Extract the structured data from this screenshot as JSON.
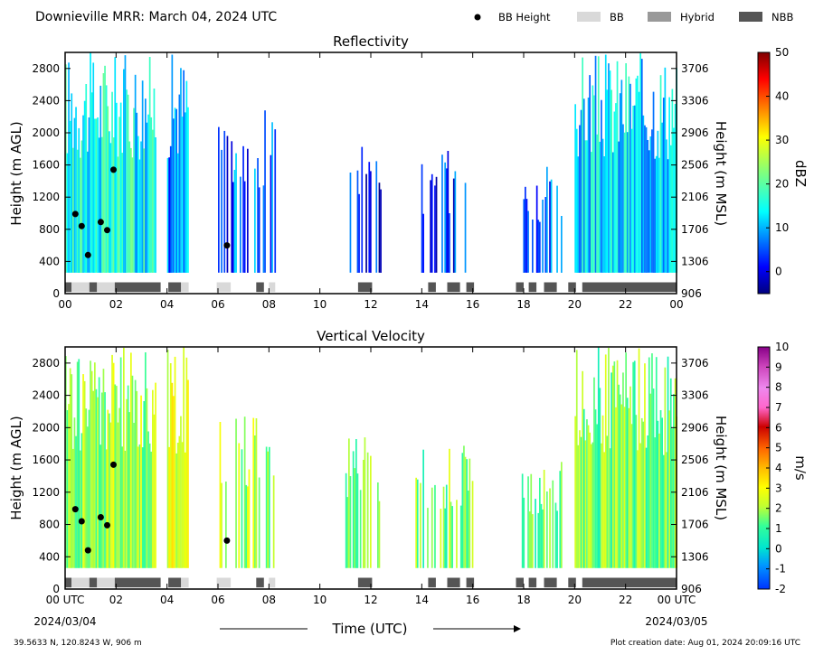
{
  "header": {
    "title": "Downieville MRR:  March 04, 2024 UTC",
    "legend": [
      {
        "label": "BB Height",
        "kind": "dot",
        "color": "#000000"
      },
      {
        "label": "BB",
        "kind": "box",
        "color": "#d9d9d9"
      },
      {
        "label": "Hybrid",
        "kind": "box",
        "color": "#999999"
      },
      {
        "label": "NBB",
        "kind": "box",
        "color": "#555555"
      }
    ]
  },
  "footer": {
    "location": "39.5633 N, 120.8243 W, 906 m",
    "created": "Plot creation date: Aug 01, 2024 20:09:16 UTC",
    "xlabel": "Time (UTC)",
    "start_date": "2024/03/04",
    "end_date": "2024/03/05"
  },
  "chart_data": [
    {
      "type": "heatmap",
      "title": "Reflectivity",
      "xlabel": "",
      "ylabel": "Height (m AGL)",
      "y2label": "Height (m MSL)",
      "xlim": [
        0,
        24
      ],
      "ylim": [
        0,
        3000
      ],
      "y2lim": [
        906,
        3906
      ],
      "xticks": [
        "00",
        "02",
        "04",
        "06",
        "08",
        "10",
        "12",
        "14",
        "16",
        "18",
        "20",
        "22",
        "00"
      ],
      "yticks": [
        "0",
        "400",
        "800",
        "1200",
        "1600",
        "2000",
        "2400",
        "2800"
      ],
      "y2ticks": [
        "906",
        "1306",
        "1706",
        "2106",
        "2506",
        "2906",
        "3306",
        "3706"
      ],
      "colorbar": {
        "label": "dBZ",
        "range": [
          -5,
          50
        ],
        "ticks": [
          "0",
          "10",
          "20",
          "30",
          "40",
          "50"
        ],
        "colormap": "jet"
      },
      "bb_height": {
        "name": "BB Height",
        "x": [
          0.4,
          0.65,
          0.9,
          1.4,
          1.65,
          1.9,
          6.35
        ],
        "y": [
          990,
          840,
          480,
          890,
          790,
          1540,
          600
        ]
      },
      "bb_classification": [
        {
          "start": 0.0,
          "end": 0.25,
          "class": "NBB"
        },
        {
          "start": 0.25,
          "end": 0.95,
          "class": "BB"
        },
        {
          "start": 0.95,
          "end": 1.25,
          "class": "NBB"
        },
        {
          "start": 1.25,
          "end": 1.95,
          "class": "BB"
        },
        {
          "start": 1.95,
          "end": 3.75,
          "class": "NBB"
        },
        {
          "start": 4.05,
          "end": 4.55,
          "class": "NBB"
        },
        {
          "start": 4.55,
          "end": 4.85,
          "class": "BB"
        },
        {
          "start": 5.95,
          "end": 6.5,
          "class": "BB"
        },
        {
          "start": 7.5,
          "end": 7.8,
          "class": "NBB"
        },
        {
          "start": 8.0,
          "end": 8.25,
          "class": "BB"
        },
        {
          "start": 11.5,
          "end": 12.05,
          "class": "NBB"
        },
        {
          "start": 14.25,
          "end": 14.55,
          "class": "NBB"
        },
        {
          "start": 15.0,
          "end": 15.5,
          "class": "NBB"
        },
        {
          "start": 15.75,
          "end": 16.05,
          "class": "NBB"
        },
        {
          "start": 17.7,
          "end": 18.0,
          "class": "NBB"
        },
        {
          "start": 18.2,
          "end": 18.5,
          "class": "NBB"
        },
        {
          "start": 18.8,
          "end": 19.3,
          "class": "NBB"
        },
        {
          "start": 19.75,
          "end": 20.05,
          "class": "NBB"
        },
        {
          "start": 20.3,
          "end": 24.0,
          "class": "NBB"
        }
      ],
      "echo_periods": [
        {
          "start": 0.0,
          "end": 3.55,
          "top": 3000,
          "value": 15
        },
        {
          "start": 4.0,
          "end": 4.85,
          "top": 3000,
          "value": 8
        },
        {
          "start": 6.0,
          "end": 8.25,
          "top": 2300,
          "value": 5
        },
        {
          "start": 11.0,
          "end": 12.4,
          "top": 1900,
          "value": 2
        },
        {
          "start": 13.75,
          "end": 16.1,
          "top": 1800,
          "value": 3
        },
        {
          "start": 17.75,
          "end": 19.5,
          "top": 1600,
          "value": 6
        },
        {
          "start": 20.0,
          "end": 24.0,
          "top": 3000,
          "value": 12
        }
      ]
    },
    {
      "type": "heatmap",
      "title": "Vertical Velocity",
      "xlabel": "Time (UTC)",
      "ylabel": "Height (m AGL)",
      "y2label": "Height (m MSL)",
      "xlim": [
        0,
        24
      ],
      "ylim": [
        0,
        3000
      ],
      "y2lim": [
        906,
        3906
      ],
      "xticks": [
        "00 UTC",
        "02",
        "04",
        "06",
        "08",
        "10",
        "12",
        "14",
        "16",
        "18",
        "20",
        "22",
        "00 UTC"
      ],
      "yticks": [
        "0",
        "400",
        "800",
        "1200",
        "1600",
        "2000",
        "2400",
        "2800"
      ],
      "y2ticks": [
        "906",
        "1306",
        "1706",
        "2106",
        "2506",
        "2906",
        "3306",
        "3706"
      ],
      "colorbar": {
        "label": "m/s",
        "range": [
          -2,
          10
        ],
        "ticks": [
          "-2",
          "-1",
          "0",
          "1",
          "2",
          "3",
          "4",
          "5",
          "6",
          "7",
          "8",
          "9",
          "10"
        ],
        "colormap": "velocity"
      },
      "bb_height": {
        "name": "BB Height",
        "x": [
          0.4,
          0.65,
          0.9,
          1.4,
          1.65,
          1.9,
          6.35
        ],
        "y": [
          990,
          840,
          480,
          890,
          790,
          1540,
          600
        ]
      },
      "echo_periods": [
        {
          "start": 0.0,
          "end": 3.55,
          "top": 3000,
          "value": 2
        },
        {
          "start": 4.0,
          "end": 4.85,
          "top": 3000,
          "value": 2.5
        },
        {
          "start": 6.0,
          "end": 8.25,
          "top": 2300,
          "value": 2
        },
        {
          "start": 11.0,
          "end": 12.4,
          "top": 1900,
          "value": 1.8
        },
        {
          "start": 13.75,
          "end": 16.1,
          "top": 1800,
          "value": 1.6
        },
        {
          "start": 17.75,
          "end": 19.5,
          "top": 1600,
          "value": 1.6
        },
        {
          "start": 20.0,
          "end": 24.0,
          "top": 3000,
          "value": 1.5
        }
      ]
    }
  ]
}
